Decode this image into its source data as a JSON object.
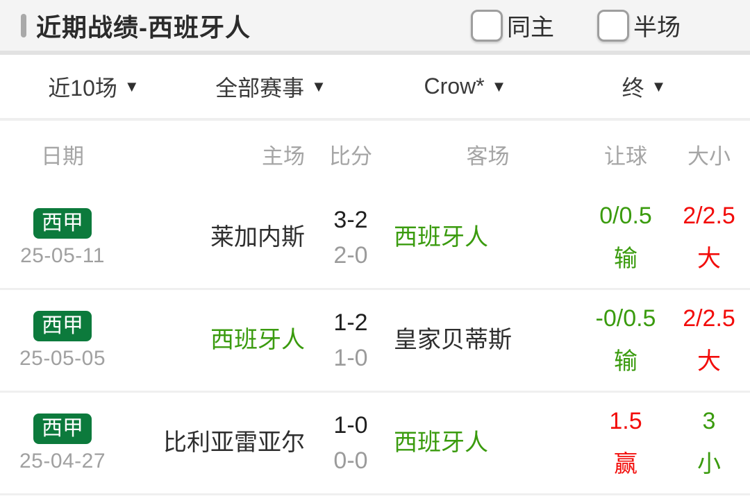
{
  "header": {
    "title": "近期战绩-西班牙人",
    "checkboxes": [
      {
        "label": "同主",
        "checked": false
      },
      {
        "label": "半场",
        "checked": false
      }
    ]
  },
  "filters": [
    {
      "label": "近10场"
    },
    {
      "label": "全部赛事"
    },
    {
      "label": "Crow*"
    },
    {
      "label": "终"
    }
  ],
  "table": {
    "columns": {
      "date": "日期",
      "home": "主场",
      "score": "比分",
      "away": "客场",
      "handicap": "让球",
      "ou": "大小"
    },
    "rows": [
      {
        "league": "西甲",
        "date": "25-05-11",
        "home": "莱加内斯",
        "home_color": "dark",
        "score": "3-2",
        "half_score": "2-0",
        "away": "西班牙人",
        "away_color": "green",
        "handicap": "0/0.5",
        "handicap_result": "输",
        "handicap_color": "green",
        "ou": "2/2.5",
        "ou_result": "大",
        "ou_color": "red"
      },
      {
        "league": "西甲",
        "date": "25-05-05",
        "home": "西班牙人",
        "home_color": "green",
        "score": "1-2",
        "half_score": "1-0",
        "away": "皇家贝蒂斯",
        "away_color": "dark",
        "handicap": "-0/0.5",
        "handicap_result": "输",
        "handicap_color": "green",
        "ou": "2/2.5",
        "ou_result": "大",
        "ou_color": "red"
      },
      {
        "league": "西甲",
        "date": "25-04-27",
        "home": "比利亚雷亚尔",
        "home_color": "dark",
        "score": "1-0",
        "half_score": "0-0",
        "away": "西班牙人",
        "away_color": "green",
        "handicap": "1.5",
        "handicap_result": "赢",
        "handicap_color": "red",
        "ou": "3",
        "ou_result": "小",
        "ou_color": "green"
      }
    ]
  },
  "colors": {
    "green": "#3a9b0e",
    "red": "#f20c0a",
    "badge_green": "#0c7a3c"
  }
}
